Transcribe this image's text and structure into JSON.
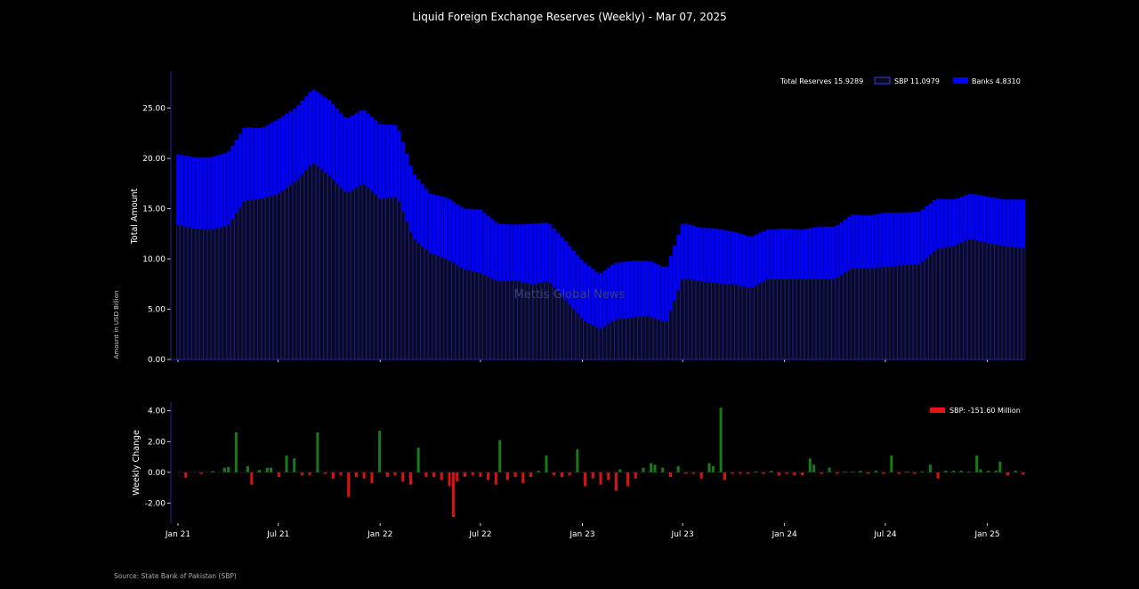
{
  "title": "Liquid Foreign Exchange Reserves (Weekly) - Mar 07, 2025",
  "watermark": "Mettis Global News",
  "source": "Source: State Bank of Pakistan (SBP)",
  "colors": {
    "background": "#000000",
    "sbp_bar": "#0a0a1e",
    "sbp_edge": "#1c1c8c",
    "banks": "#0000ff",
    "axis": "#2222aa",
    "positive": "#1a7a1a",
    "negative": "#dd1111",
    "legend_red": "#ee1111"
  },
  "chart_data": [
    {
      "type": "bar",
      "stacked": true,
      "ylabel": "Total Amount",
      "ylabel_secondary": "Amount in USD Billion",
      "ylim": [
        0,
        28.5
      ],
      "yticks": [
        "0.00",
        "5.00",
        "10.00",
        "15.00",
        "20.00",
        "25.00"
      ],
      "x_date_range": [
        "2021-01-01",
        "2025-03-07"
      ],
      "xticks": [
        "Jan 21",
        "Jul 21",
        "Jan 22",
        "Jul 22",
        "Jan 23",
        "Jul 23",
        "Jan 24",
        "Jul 24",
        "Jan 25"
      ],
      "legend": [
        {
          "label": "Total Reserves 15.9289",
          "swatch": "none"
        },
        {
          "label": "SBP 11.0979",
          "swatch": "sbp"
        },
        {
          "label": "Banks 4.8310",
          "swatch": "banks"
        }
      ],
      "legend_position": "top-right",
      "series": [
        {
          "name": "SBP",
          "points": [
            [
              "2021-01-01",
              13.4
            ],
            [
              "2021-02-01",
              13.0
            ],
            [
              "2021-03-01",
              12.9
            ],
            [
              "2021-04-01",
              13.3
            ],
            [
              "2021-05-01",
              15.8
            ],
            [
              "2021-06-01",
              16.0
            ],
            [
              "2021-07-01",
              16.5
            ],
            [
              "2021-08-01",
              17.7
            ],
            [
              "2021-09-01",
              19.6
            ],
            [
              "2021-10-01",
              18.3
            ],
            [
              "2021-11-01",
              16.5
            ],
            [
              "2021-12-01",
              17.5
            ],
            [
              "2022-01-01",
              16.0
            ],
            [
              "2022-02-01",
              16.2
            ],
            [
              "2022-03-01",
              12.1
            ],
            [
              "2022-04-01",
              10.6
            ],
            [
              "2022-05-01",
              10.0
            ],
            [
              "2022-06-01",
              9.0
            ],
            [
              "2022-07-01",
              8.6
            ],
            [
              "2022-08-01",
              7.8
            ],
            [
              "2022-09-01",
              7.9
            ],
            [
              "2022-10-01",
              7.5
            ],
            [
              "2022-11-01",
              7.8
            ],
            [
              "2022-12-01",
              6.0
            ],
            [
              "2023-01-01",
              4.0
            ],
            [
              "2023-02-01",
              3.0
            ],
            [
              "2023-03-01",
              4.0
            ],
            [
              "2023-04-01",
              4.2
            ],
            [
              "2023-05-01",
              4.3
            ],
            [
              "2023-06-01",
              3.7
            ],
            [
              "2023-07-01",
              8.1
            ],
            [
              "2023-08-01",
              7.8
            ],
            [
              "2023-09-01",
              7.6
            ],
            [
              "2023-10-01",
              7.5
            ],
            [
              "2023-11-01",
              7.1
            ],
            [
              "2023-12-01",
              8.0
            ],
            [
              "2024-01-01",
              8.0
            ],
            [
              "2024-02-01",
              8.0
            ],
            [
              "2024-03-01",
              8.0
            ],
            [
              "2024-04-01",
              8.0
            ],
            [
              "2024-05-01",
              9.1
            ],
            [
              "2024-06-01",
              9.1
            ],
            [
              "2024-07-01",
              9.2
            ],
            [
              "2024-08-01",
              9.4
            ],
            [
              "2024-09-01",
              9.5
            ],
            [
              "2024-10-01",
              11.0
            ],
            [
              "2024-11-01",
              11.3
            ],
            [
              "2024-12-01",
              12.0
            ],
            [
              "2025-01-01",
              11.6
            ],
            [
              "2025-02-01",
              11.3
            ],
            [
              "2025-03-07",
              11.1
            ]
          ]
        },
        {
          "name": "Banks",
          "points": [
            [
              "2021-01-01",
              7.0
            ],
            [
              "2021-02-01",
              7.1
            ],
            [
              "2021-03-01",
              7.2
            ],
            [
              "2021-04-01",
              7.3
            ],
            [
              "2021-05-01",
              7.3
            ],
            [
              "2021-06-01",
              7.0
            ],
            [
              "2021-07-01",
              7.4
            ],
            [
              "2021-08-01",
              7.3
            ],
            [
              "2021-09-01",
              7.3
            ],
            [
              "2021-10-01",
              7.5
            ],
            [
              "2021-11-01",
              7.4
            ],
            [
              "2021-12-01",
              7.4
            ],
            [
              "2022-01-01",
              7.4
            ],
            [
              "2022-02-01",
              7.1
            ],
            [
              "2022-03-01",
              6.5
            ],
            [
              "2022-04-01",
              5.9
            ],
            [
              "2022-05-01",
              6.1
            ],
            [
              "2022-06-01",
              6.0
            ],
            [
              "2022-07-01",
              6.3
            ],
            [
              "2022-08-01",
              5.7
            ],
            [
              "2022-09-01",
              5.5
            ],
            [
              "2022-10-01",
              6.0
            ],
            [
              "2022-11-01",
              5.8
            ],
            [
              "2022-12-01",
              5.8
            ],
            [
              "2023-01-01",
              5.8
            ],
            [
              "2023-02-01",
              5.5
            ],
            [
              "2023-03-01",
              5.6
            ],
            [
              "2023-04-01",
              5.6
            ],
            [
              "2023-05-01",
              5.5
            ],
            [
              "2023-06-01",
              5.4
            ],
            [
              "2023-07-01",
              5.5
            ],
            [
              "2023-08-01",
              5.3
            ],
            [
              "2023-09-01",
              5.4
            ],
            [
              "2023-10-01",
              5.2
            ],
            [
              "2023-11-01",
              5.1
            ],
            [
              "2023-12-01",
              4.9
            ],
            [
              "2024-01-01",
              5.0
            ],
            [
              "2024-02-01",
              4.9
            ],
            [
              "2024-03-01",
              5.2
            ],
            [
              "2024-04-01",
              5.2
            ],
            [
              "2024-05-01",
              5.3
            ],
            [
              "2024-06-01",
              5.2
            ],
            [
              "2024-07-01",
              5.4
            ],
            [
              "2024-08-01",
              5.2
            ],
            [
              "2024-09-01",
              5.2
            ],
            [
              "2024-10-01",
              5.0
            ],
            [
              "2024-11-01",
              4.6
            ],
            [
              "2024-12-01",
              4.5
            ],
            [
              "2025-01-01",
              4.6
            ],
            [
              "2025-02-01",
              4.6
            ],
            [
              "2025-03-07",
              4.8
            ]
          ]
        }
      ]
    },
    {
      "type": "bar",
      "ylabel": "Weekly Change",
      "ylim": [
        -3.3,
        4.5
      ],
      "yticks": [
        "-2.00",
        "0.00",
        "2.00",
        "4.00"
      ],
      "x_date_range": [
        "2021-01-01",
        "2025-03-07"
      ],
      "xticks": [
        "Jan 21",
        "Jul 21",
        "Jan 22",
        "Jul 22",
        "Jan 23",
        "Jul 23",
        "Jan 24",
        "Jul 24",
        "Jan 25"
      ],
      "legend": [
        {
          "label": "SBP: -151.60 Million",
          "swatch": "red"
        }
      ],
      "legend_position": "top-right",
      "series": [
        {
          "name": "SBP",
          "points": [
            [
              "2021-01-15",
              -0.35
            ],
            [
              "2021-02-12",
              -0.1
            ],
            [
              "2021-03-05",
              0.08
            ],
            [
              "2021-03-26",
              0.3
            ],
            [
              "2021-04-02",
              0.35
            ],
            [
              "2021-04-16",
              2.6
            ],
            [
              "2021-05-07",
              0.4
            ],
            [
              "2021-05-14",
              -0.8
            ],
            [
              "2021-05-28",
              0.15
            ],
            [
              "2021-06-11",
              0.3
            ],
            [
              "2021-06-18",
              0.3
            ],
            [
              "2021-07-02",
              -0.3
            ],
            [
              "2021-07-16",
              1.1
            ],
            [
              "2021-07-30",
              0.9
            ],
            [
              "2021-08-13",
              -0.2
            ],
            [
              "2021-08-27",
              -0.2
            ],
            [
              "2021-09-10",
              2.6
            ],
            [
              "2021-09-24",
              -0.1
            ],
            [
              "2021-10-08",
              -0.4
            ],
            [
              "2021-10-22",
              -0.2
            ],
            [
              "2021-11-05",
              -1.6
            ],
            [
              "2021-11-19",
              -0.3
            ],
            [
              "2021-12-03",
              -0.4
            ],
            [
              "2021-12-17",
              -0.7
            ],
            [
              "2021-12-31",
              2.7
            ],
            [
              "2022-01-14",
              -0.3
            ],
            [
              "2022-01-28",
              -0.2
            ],
            [
              "2022-02-11",
              -0.6
            ],
            [
              "2022-02-25",
              -0.8
            ],
            [
              "2022-03-11",
              1.6
            ],
            [
              "2022-03-25",
              -0.3
            ],
            [
              "2022-04-08",
              -0.3
            ],
            [
              "2022-04-22",
              -0.5
            ],
            [
              "2022-05-06",
              -0.9
            ],
            [
              "2022-05-13",
              -2.9
            ],
            [
              "2022-05-20",
              -0.6
            ],
            [
              "2022-06-03",
              -0.3
            ],
            [
              "2022-06-17",
              -0.2
            ],
            [
              "2022-07-01",
              -0.3
            ],
            [
              "2022-07-15",
              -0.5
            ],
            [
              "2022-07-29",
              -0.8
            ],
            [
              "2022-08-05",
              2.1
            ],
            [
              "2022-08-19",
              -0.5
            ],
            [
              "2022-09-02",
              -0.3
            ],
            [
              "2022-09-16",
              -0.7
            ],
            [
              "2022-09-30",
              -0.3
            ],
            [
              "2022-10-14",
              0.1
            ],
            [
              "2022-10-28",
              1.1
            ],
            [
              "2022-11-11",
              -0.2
            ],
            [
              "2022-11-25",
              -0.3
            ],
            [
              "2022-12-09",
              -0.2
            ],
            [
              "2022-12-23",
              1.5
            ],
            [
              "2023-01-06",
              -0.9
            ],
            [
              "2023-01-20",
              -0.4
            ],
            [
              "2023-02-03",
              -0.8
            ],
            [
              "2023-02-17",
              -0.5
            ],
            [
              "2023-03-03",
              -1.2
            ],
            [
              "2023-03-10",
              0.2
            ],
            [
              "2023-03-24",
              -0.9
            ],
            [
              "2023-04-07",
              -0.4
            ],
            [
              "2023-04-21",
              0.3
            ],
            [
              "2023-05-05",
              0.6
            ],
            [
              "2023-05-12",
              0.5
            ],
            [
              "2023-05-26",
              0.3
            ],
            [
              "2023-06-09",
              -0.3
            ],
            [
              "2023-06-23",
              0.4
            ],
            [
              "2023-07-07",
              -0.1
            ],
            [
              "2023-07-21",
              -0.1
            ],
            [
              "2023-08-04",
              -0.4
            ],
            [
              "2023-08-18",
              0.6
            ],
            [
              "2023-08-25",
              0.4
            ],
            [
              "2023-09-08",
              4.2
            ],
            [
              "2023-09-15",
              -0.5
            ],
            [
              "2023-09-29",
              -0.1
            ],
            [
              "2023-10-13",
              -0.1
            ],
            [
              "2023-10-27",
              -0.1
            ],
            [
              "2023-11-10",
              0.05
            ],
            [
              "2023-11-24",
              -0.1
            ],
            [
              "2023-12-08",
              0.1
            ],
            [
              "2023-12-22",
              -0.2
            ],
            [
              "2024-01-05",
              -0.1
            ],
            [
              "2024-01-19",
              -0.2
            ],
            [
              "2024-02-02",
              -0.2
            ],
            [
              "2024-02-16",
              0.9
            ],
            [
              "2024-02-23",
              0.5
            ],
            [
              "2024-03-08",
              -0.1
            ],
            [
              "2024-03-22",
              0.3
            ],
            [
              "2024-04-05",
              -0.1
            ],
            [
              "2024-04-19",
              0.05
            ],
            [
              "2024-05-03",
              0.05
            ],
            [
              "2024-05-17",
              0.1
            ],
            [
              "2024-05-31",
              -0.1
            ],
            [
              "2024-06-14",
              0.1
            ],
            [
              "2024-06-28",
              -0.1
            ],
            [
              "2024-07-12",
              1.1
            ],
            [
              "2024-07-26",
              -0.1
            ],
            [
              "2024-08-09",
              0.05
            ],
            [
              "2024-08-23",
              -0.1
            ],
            [
              "2024-09-06",
              0.05
            ],
            [
              "2024-09-20",
              0.5
            ],
            [
              "2024-10-04",
              -0.4
            ],
            [
              "2024-10-18",
              0.1
            ],
            [
              "2024-11-01",
              0.1
            ],
            [
              "2024-11-15",
              0.1
            ],
            [
              "2024-11-29",
              0.05
            ],
            [
              "2024-12-13",
              1.1
            ],
            [
              "2024-12-20",
              0.2
            ],
            [
              "2025-01-03",
              0.1
            ],
            [
              "2025-01-17",
              0.1
            ],
            [
              "2025-01-24",
              0.7
            ],
            [
              "2025-02-07",
              -0.2
            ],
            [
              "2025-02-21",
              0.1
            ],
            [
              "2025-03-07",
              -0.15
            ]
          ]
        }
      ]
    }
  ]
}
